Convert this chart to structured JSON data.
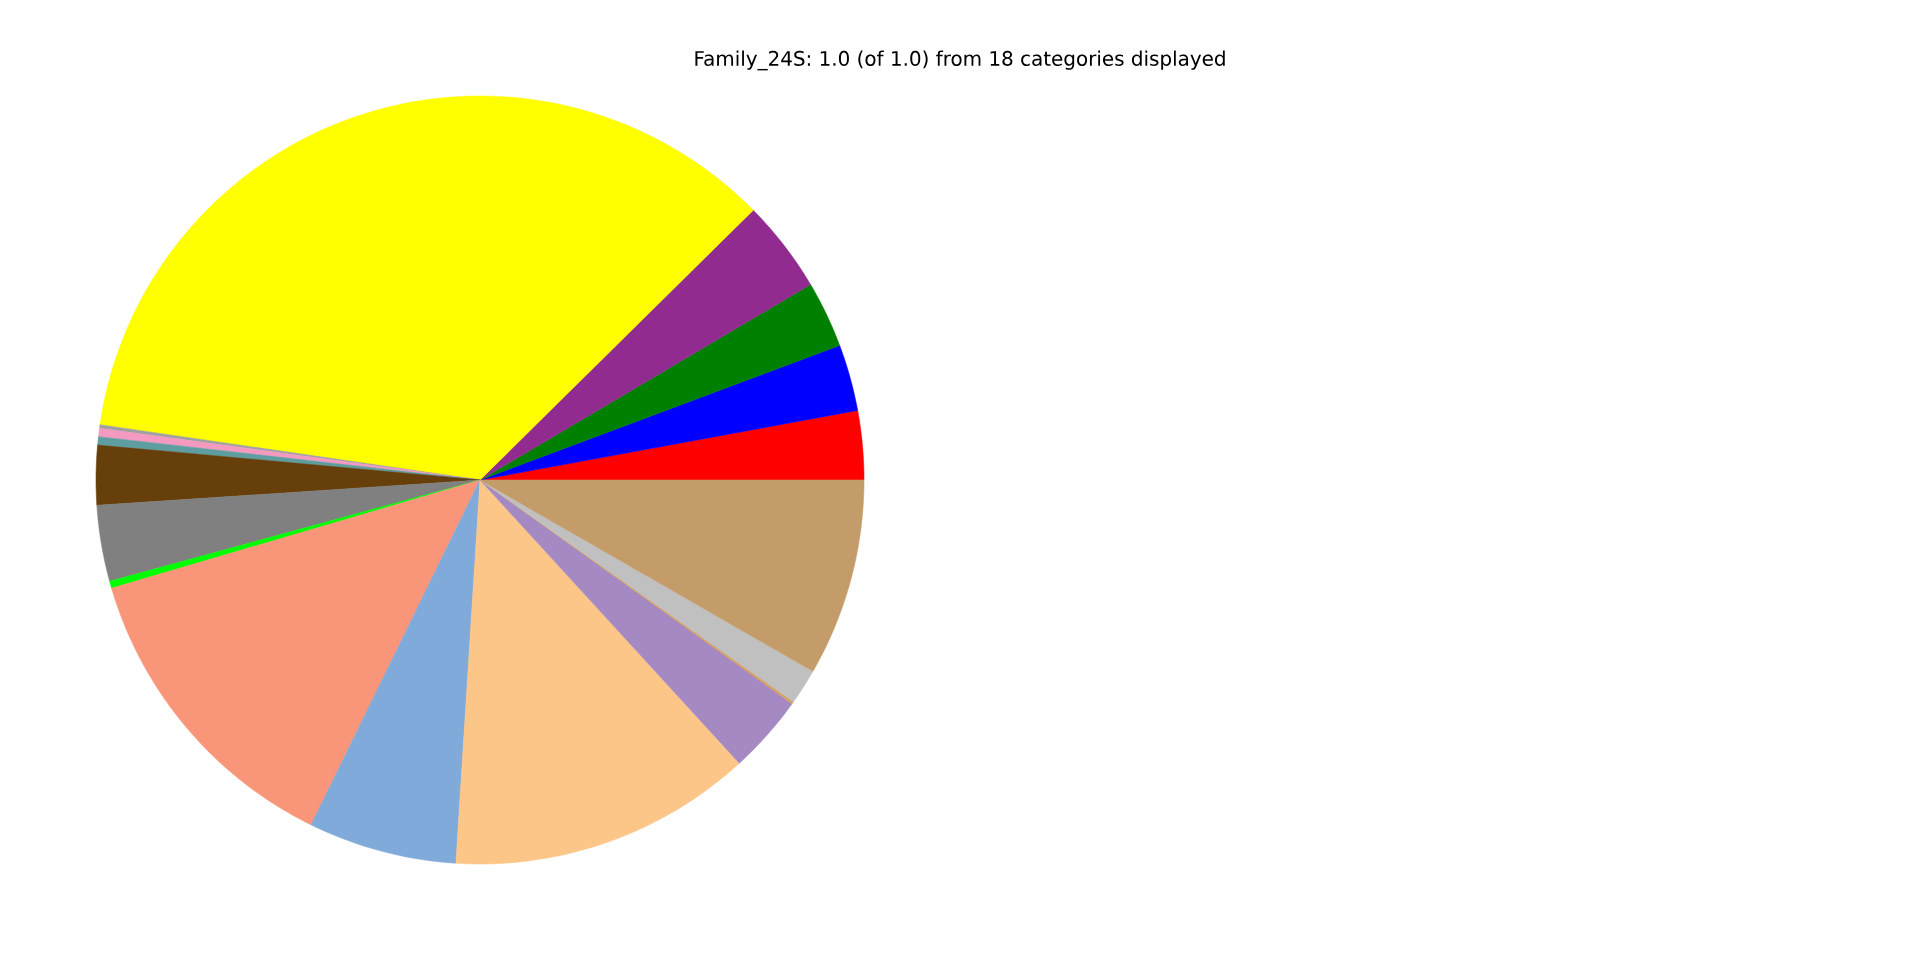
{
  "chart_data": {
    "type": "pie",
    "title": "Family_24S: 1.0 (of 1.0) from 18 categories displayed",
    "categories": [
      null,
      null,
      null,
      null,
      null,
      null,
      null,
      null,
      null,
      null,
      null,
      null,
      null,
      null,
      null,
      null,
      null,
      null
    ],
    "values": [
      2.9,
      2.8,
      2.8,
      3.9,
      35.3,
      0.15,
      0.35,
      0.35,
      2.5,
      3.2,
      0.3,
      13.2,
      6.25,
      12.8,
      3.3,
      0.1,
      1.5,
      8.3
    ],
    "colors": [
      "#ff0000",
      "#0000ff",
      "#008000",
      "#912b8f",
      "#ffff00",
      "#a0a0a0",
      "#f49ac1",
      "#5f9ea0",
      "#663f0a",
      "#808080",
      "#00ff00",
      "#f9967a",
      "#80aad9",
      "#fdc689",
      "#a589c3",
      "#d8a060",
      "#c0c0c0",
      "#c49c6a"
    ]
  }
}
